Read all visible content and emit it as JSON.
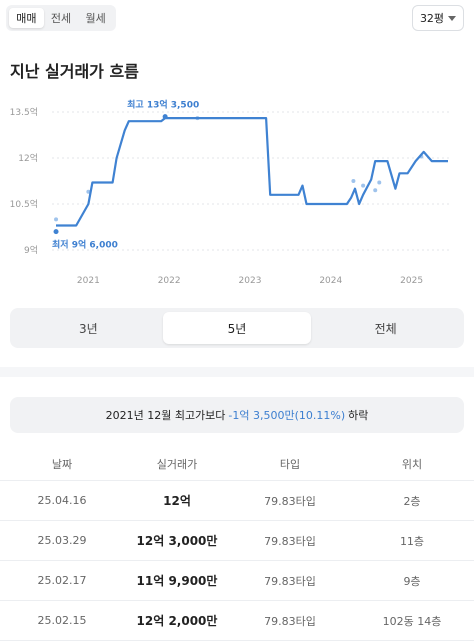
{
  "deal_tabs": [
    "매매",
    "전세",
    "월세"
  ],
  "deal_tab_active": 0,
  "size_select": {
    "value": "32평"
  },
  "section_title": "지난 실거래가 흐름",
  "chart_data": {
    "type": "line",
    "title": "",
    "y_unit_labels": [
      "13.5억",
      "12억",
      "10.5억",
      "9억"
    ],
    "y_ticks": [
      13.5,
      12,
      10.5,
      9
    ],
    "ylim": [
      9,
      13.5
    ],
    "x_tick_labels": [
      "2021",
      "2022",
      "2023",
      "2024",
      "2025"
    ],
    "x_ticks": [
      2021,
      2022,
      2023,
      2024,
      2025
    ],
    "xlim": [
      2020.55,
      2025.5
    ],
    "grid": "horizontal-dotted",
    "max_label": "최고 13억 3,500",
    "min_label": "최저 9억 6,000",
    "max_point": {
      "x": 2021.95,
      "y": 13.35
    },
    "min_point": {
      "x": 2020.6,
      "y": 9.6
    },
    "series": [
      {
        "color": "#3f82d2",
        "points": [
          [
            2020.6,
            9.8
          ],
          [
            2020.85,
            9.8
          ],
          [
            2021.0,
            10.5
          ],
          [
            2021.05,
            11.2
          ],
          [
            2021.25,
            11.2
          ],
          [
            2021.3,
            11.2
          ],
          [
            2021.35,
            12.0
          ],
          [
            2021.45,
            12.9
          ],
          [
            2021.5,
            13.2
          ],
          [
            2021.9,
            13.2
          ],
          [
            2021.95,
            13.3
          ],
          [
            2022.2,
            13.3
          ],
          [
            2022.5,
            13.3
          ],
          [
            2022.8,
            13.3
          ],
          [
            2023.2,
            13.3
          ],
          [
            2023.25,
            10.8
          ],
          [
            2023.5,
            10.8
          ],
          [
            2023.6,
            10.8
          ],
          [
            2023.65,
            11.1
          ],
          [
            2023.7,
            10.5
          ],
          [
            2024.2,
            10.5
          ],
          [
            2024.25,
            10.7
          ],
          [
            2024.3,
            11.0
          ],
          [
            2024.35,
            10.5
          ],
          [
            2024.4,
            10.8
          ],
          [
            2024.5,
            11.3
          ],
          [
            2024.55,
            11.9
          ],
          [
            2024.7,
            11.9
          ],
          [
            2024.8,
            11.0
          ],
          [
            2024.85,
            11.5
          ],
          [
            2024.95,
            11.5
          ],
          [
            2025.05,
            11.9
          ],
          [
            2025.15,
            12.2
          ],
          [
            2025.25,
            11.9
          ],
          [
            2025.45,
            11.9
          ]
        ]
      }
    ],
    "scatter": [
      [
        2020.6,
        9.6
      ],
      [
        2020.6,
        10.0
      ],
      [
        2021.0,
        10.9
      ],
      [
        2021.95,
        13.35
      ],
      [
        2022.35,
        13.3
      ],
      [
        2024.28,
        11.25
      ],
      [
        2024.4,
        11.1
      ],
      [
        2024.55,
        10.95
      ],
      [
        2024.6,
        11.2
      ],
      [
        2025.12,
        12.05
      ]
    ]
  },
  "period_tabs": [
    "3년",
    "5년",
    "전체"
  ],
  "period_tab_active": 1,
  "summary": {
    "prefix": "2021년 12월 최고가보다",
    "change": "-1억 3,500만(10.11%)",
    "suffix": "하락"
  },
  "table": {
    "headers": [
      "날짜",
      "실거래가",
      "타입",
      "위치"
    ],
    "rows": [
      [
        "25.04.16",
        "12억",
        "79.83타입",
        "2층"
      ],
      [
        "25.03.29",
        "12억 3,000만",
        "79.83타입",
        "11층"
      ],
      [
        "25.02.17",
        "11억 9,900만",
        "79.83타입",
        "9층"
      ],
      [
        "25.02.15",
        "12억 2,000만",
        "79.83타입",
        "102동 14층"
      ]
    ]
  }
}
